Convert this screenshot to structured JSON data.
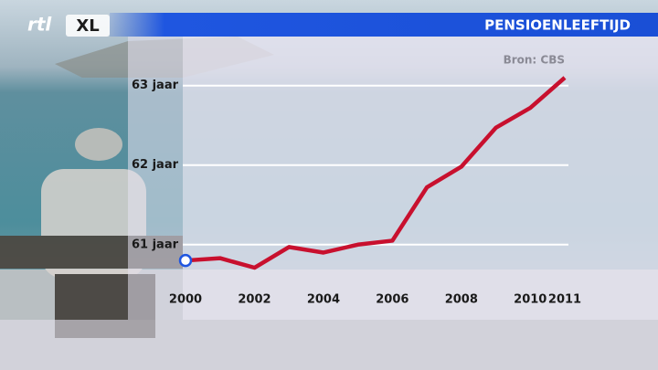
{
  "logo": {
    "left": "rtl",
    "right": "XL"
  },
  "chart_data": {
    "type": "line",
    "title": "PENSIOENLEEFTIJD",
    "source": "Bron: CBS",
    "x": [
      2000,
      2001,
      2002,
      2003,
      2004,
      2005,
      2006,
      2007,
      2008,
      2009,
      2010,
      2011
    ],
    "values": [
      60.8,
      60.83,
      60.71,
      60.97,
      60.9,
      61.0,
      61.05,
      61.72,
      61.98,
      62.47,
      62.72,
      63.1
    ],
    "color": "#c8102e",
    "xlim": [
      2000,
      2011
    ],
    "xticks": [
      2000,
      2002,
      2004,
      2006,
      2008,
      2010,
      2011
    ],
    "ylim": [
      60.4,
      63.1
    ],
    "yticks": [
      {
        "value": 61,
        "label": "61 jaar"
      },
      {
        "value": 62,
        "label": "62 jaar"
      },
      {
        "value": 63,
        "label": "63 jaar"
      }
    ],
    "grid": true
  }
}
